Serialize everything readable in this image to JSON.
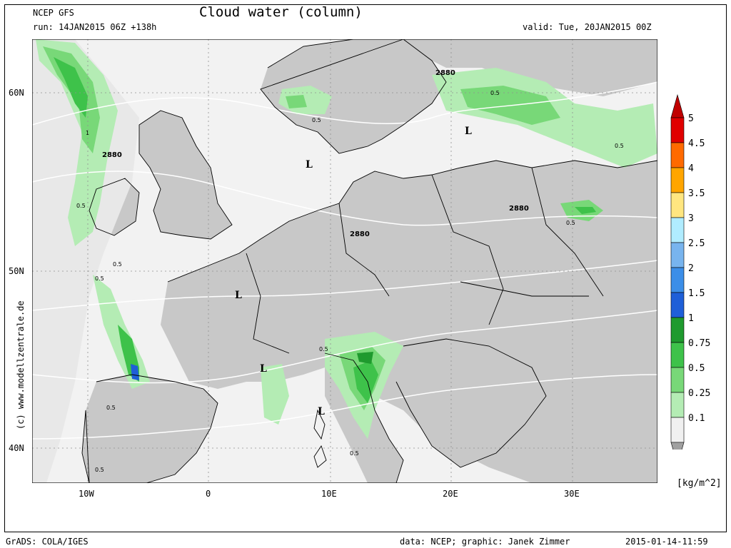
{
  "header": {
    "model": "NCEP GFS",
    "title": "Cloud water (column)",
    "run": "run: 14JAN2015 06Z +138h",
    "valid": "valid: Tue, 20JAN2015 00Z"
  },
  "watermark": "(c)  www.modellzentrale.de",
  "map": {
    "lat_labels": [
      "60N",
      "50N",
      "40N"
    ],
    "lon_labels": [
      "10W",
      "0",
      "10E",
      "20E",
      "30E"
    ],
    "contour_labels": [
      "2880",
      "2880",
      "2880",
      "2880"
    ],
    "cloud_labels": [
      "1",
      "0.5",
      "0.5",
      "0.5",
      "0.5",
      "0.5",
      "0.5",
      "0.5",
      "0.5",
      "0.5",
      "0.5",
      "0.5"
    ],
    "low_marks": [
      "L",
      "L",
      "L",
      "L",
      "L"
    ],
    "colors": {
      "land": "#c8c8c8",
      "sea": "#f2f2f2",
      "border": "#000000",
      "contour": "#ffffff"
    }
  },
  "colorbar": {
    "labels": [
      "5",
      "4.5",
      "4",
      "3.5",
      "3",
      "2.5",
      "2",
      "1.5",
      "1",
      "0.75",
      "0.5",
      "0.25",
      "0.1"
    ],
    "colors": [
      "#e00000",
      "#ff6a00",
      "#ffa500",
      "#ffe680",
      "#b0ecff",
      "#78b4ee",
      "#3c8ee8",
      "#1f5fd8",
      "#1f9a2e",
      "#3ec24a",
      "#78d878",
      "#b4ecb4",
      "#f0f0f0"
    ],
    "top_color": "#c00000",
    "bottom_color": "#a0a0a0",
    "unit": "[kg/m^2]"
  },
  "footer": {
    "left": "GrADS: COLA/IGES",
    "data": "data: NCEP; graphic: Janek Zimmer",
    "timestamp": "2015-01-14-11:59"
  }
}
